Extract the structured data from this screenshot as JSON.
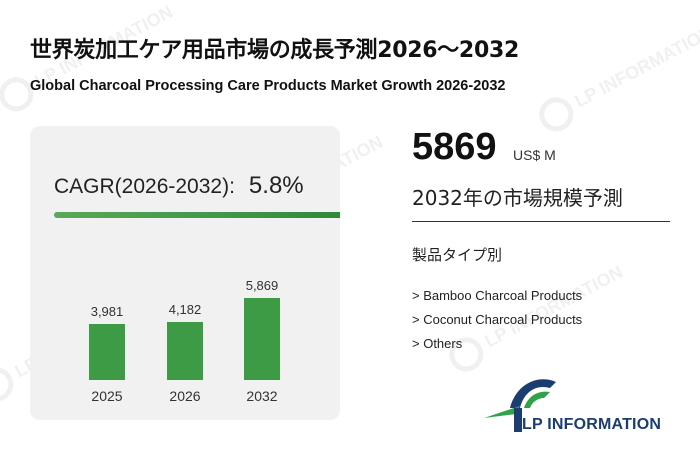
{
  "header": {
    "title_jp": "世界炭加工ケア用品市場の成長予測2026～2032",
    "title_en": "Global Charcoal Processing Care Products Market Growth 2026-2032"
  },
  "cagr": {
    "label": "CAGR(2026-2032):",
    "value": "5.8%"
  },
  "chart_data": {
    "type": "bar",
    "categories": [
      "2025",
      "2026",
      "2032"
    ],
    "values": [
      3981,
      4182,
      5869
    ],
    "value_labels": [
      "3,981",
      "4,182",
      "5,869"
    ],
    "title": "",
    "xlabel": "",
    "ylabel": "",
    "ylim": [
      0,
      5869
    ],
    "grid": false,
    "bar_color": "#3d9a45"
  },
  "highlight": {
    "value": "5869",
    "unit": "US$ M",
    "caption": "2032年の市場規模予測"
  },
  "segment": {
    "title": "製品タイプ別",
    "items": [
      "> Bamboo Charcoal Products",
      "> Coconut Charcoal Products",
      "> Others"
    ]
  },
  "logo": {
    "text": "LP INFORMATION",
    "colors": {
      "primary": "#1c3d70",
      "accent": "#2fa24a"
    }
  },
  "watermark": {
    "text": "LP INFORMATION"
  }
}
